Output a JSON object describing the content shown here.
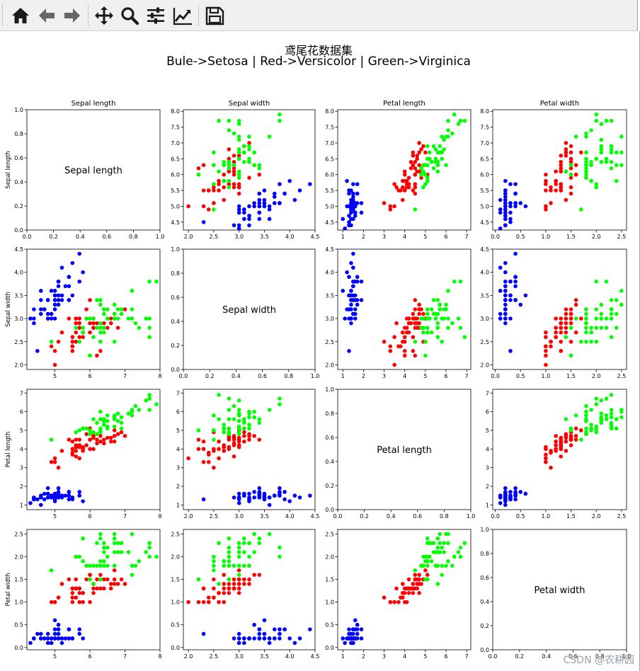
{
  "toolbar": {
    "buttons": [
      {
        "name": "home-button",
        "icon": "home-icon"
      },
      {
        "name": "back-button",
        "icon": "arrow-left-icon"
      },
      {
        "name": "forward-button",
        "icon": "arrow-right-icon"
      },
      {
        "name": "pan-button",
        "icon": "move-icon"
      },
      {
        "name": "zoom-button",
        "icon": "magnifier-icon"
      },
      {
        "name": "configure-subplots-button",
        "icon": "sliders-icon"
      },
      {
        "name": "edit-axis-button",
        "icon": "line-chart-icon"
      },
      {
        "name": "save-button",
        "icon": "save-icon"
      }
    ]
  },
  "figure": {
    "title_line1": "鸢尾花数据集",
    "title_line2": "Bule->Setosa | Red->Versicolor | Green->Virginica",
    "watermark": "CSDN @农耕园"
  },
  "chart_data": {
    "type": "scatter",
    "layout": "4x4 scatter matrix",
    "features": [
      "Sepal length",
      "Sepal width",
      "Petal length",
      "Petal width"
    ],
    "colors": {
      "Setosa": "#0000ff",
      "Versicolor": "#ff0000",
      "Virginica": "#00ff00"
    },
    "grid": false,
    "diagonal_axis": {
      "xlim": [
        0,
        1
      ],
      "ylim": [
        0,
        1
      ],
      "ticks": [
        "0.0",
        "0.2",
        "0.4",
        "0.6",
        "0.8",
        "1.0"
      ]
    },
    "axes": {
      "Sepal length": {
        "lim": [
          4.2,
          8.0
        ],
        "ticks": [
          5,
          6,
          7,
          8
        ]
      },
      "Sepal width": {
        "lim": [
          1.9,
          4.5
        ],
        "ticks": [
          2.0,
          2.5,
          3.0,
          3.5,
          4.0,
          4.5
        ]
      },
      "Petal length": {
        "lim": [
          0.75,
          7.2
        ],
        "ticks": [
          1,
          2,
          3,
          4,
          5,
          6,
          7
        ]
      },
      "Petal width": {
        "lim": [
          -0.05,
          2.6
        ],
        "ticks": [
          0.0,
          0.5,
          1.0,
          1.5,
          2.0,
          2.5
        ]
      }
    },
    "tick_labels": {
      "Sepal length": [
        "5",
        "6",
        "7",
        "8"
      ],
      "Sepal width": [
        "2.0",
        "2.5",
        "3.0",
        "3.5",
        "4.0",
        "4.5"
      ],
      "Petal length": [
        "1",
        "2",
        "3",
        "4",
        "5",
        "6",
        "7"
      ],
      "Petal width": [
        "0.0",
        "0.5",
        "1.0",
        "1.5",
        "2.0",
        "2.5"
      ]
    },
    "row_tick_labels": {
      "Sepal length": [
        "4.5",
        "5.0",
        "5.5",
        "6.0",
        "6.5",
        "7.0",
        "7.5",
        "8.0"
      ],
      "Sepal width": [
        "2.0",
        "2.5",
        "3.0",
        "3.5",
        "4.0",
        "4.5"
      ],
      "Petal length": [
        "1",
        "2",
        "3",
        "4",
        "5",
        "6",
        "7"
      ],
      "Petal width": [
        "0.0",
        "0.5",
        "1.0",
        "1.5",
        "2.0",
        "2.5"
      ]
    },
    "row_axes": {
      "Sepal length": {
        "lim": [
          4.25,
          8.05
        ],
        "ticks": [
          4.5,
          5.0,
          5.5,
          6.0,
          6.5,
          7.0,
          7.5,
          8.0
        ]
      }
    },
    "species_order": [
      "Setosa",
      "Versicolor",
      "Virginica"
    ],
    "samples_per_species": 50,
    "data": [
      [
        5.1,
        3.5,
        1.4,
        0.2
      ],
      [
        4.9,
        3.0,
        1.4,
        0.2
      ],
      [
        4.7,
        3.2,
        1.3,
        0.2
      ],
      [
        4.6,
        3.1,
        1.5,
        0.2
      ],
      [
        5.0,
        3.6,
        1.4,
        0.2
      ],
      [
        5.4,
        3.9,
        1.7,
        0.4
      ],
      [
        4.6,
        3.4,
        1.4,
        0.3
      ],
      [
        5.0,
        3.4,
        1.5,
        0.2
      ],
      [
        4.4,
        2.9,
        1.4,
        0.2
      ],
      [
        4.9,
        3.1,
        1.5,
        0.1
      ],
      [
        5.4,
        3.7,
        1.5,
        0.2
      ],
      [
        4.8,
        3.4,
        1.6,
        0.2
      ],
      [
        4.8,
        3.0,
        1.4,
        0.1
      ],
      [
        4.3,
        3.0,
        1.1,
        0.1
      ],
      [
        5.8,
        4.0,
        1.2,
        0.2
      ],
      [
        5.7,
        4.4,
        1.5,
        0.4
      ],
      [
        5.4,
        3.9,
        1.3,
        0.4
      ],
      [
        5.1,
        3.5,
        1.4,
        0.3
      ],
      [
        5.7,
        3.8,
        1.7,
        0.3
      ],
      [
        5.1,
        3.8,
        1.5,
        0.3
      ],
      [
        5.4,
        3.4,
        1.7,
        0.2
      ],
      [
        5.1,
        3.7,
        1.5,
        0.4
      ],
      [
        4.6,
        3.6,
        1.0,
        0.2
      ],
      [
        5.1,
        3.3,
        1.7,
        0.5
      ],
      [
        4.8,
        3.4,
        1.9,
        0.2
      ],
      [
        5.0,
        3.0,
        1.6,
        0.2
      ],
      [
        5.0,
        3.4,
        1.6,
        0.4
      ],
      [
        5.2,
        3.5,
        1.5,
        0.2
      ],
      [
        5.2,
        3.4,
        1.4,
        0.2
      ],
      [
        4.7,
        3.2,
        1.6,
        0.2
      ],
      [
        4.8,
        3.1,
        1.6,
        0.2
      ],
      [
        5.4,
        3.4,
        1.5,
        0.4
      ],
      [
        5.2,
        4.1,
        1.5,
        0.1
      ],
      [
        5.5,
        4.2,
        1.4,
        0.2
      ],
      [
        4.9,
        3.1,
        1.5,
        0.2
      ],
      [
        5.0,
        3.2,
        1.2,
        0.2
      ],
      [
        5.5,
        3.5,
        1.3,
        0.2
      ],
      [
        4.9,
        3.6,
        1.4,
        0.1
      ],
      [
        4.4,
        3.0,
        1.3,
        0.2
      ],
      [
        5.1,
        3.4,
        1.5,
        0.2
      ],
      [
        5.0,
        3.5,
        1.3,
        0.3
      ],
      [
        4.5,
        2.3,
        1.3,
        0.3
      ],
      [
        4.4,
        3.2,
        1.3,
        0.2
      ],
      [
        5.0,
        3.5,
        1.6,
        0.6
      ],
      [
        5.1,
        3.8,
        1.9,
        0.4
      ],
      [
        4.8,
        3.0,
        1.4,
        0.3
      ],
      [
        5.1,
        3.8,
        1.6,
        0.2
      ],
      [
        4.6,
        3.2,
        1.4,
        0.2
      ],
      [
        5.3,
        3.7,
        1.5,
        0.2
      ],
      [
        5.0,
        3.3,
        1.4,
        0.2
      ],
      [
        7.0,
        3.2,
        4.7,
        1.4
      ],
      [
        6.4,
        3.2,
        4.5,
        1.5
      ],
      [
        6.9,
        3.1,
        4.9,
        1.5
      ],
      [
        5.5,
        2.3,
        4.0,
        1.3
      ],
      [
        6.5,
        2.8,
        4.6,
        1.5
      ],
      [
        5.7,
        2.8,
        4.5,
        1.3
      ],
      [
        6.3,
        3.3,
        4.7,
        1.6
      ],
      [
        4.9,
        2.4,
        3.3,
        1.0
      ],
      [
        6.6,
        2.9,
        4.6,
        1.3
      ],
      [
        5.2,
        2.7,
        3.9,
        1.4
      ],
      [
        5.0,
        2.0,
        3.5,
        1.0
      ],
      [
        5.9,
        3.0,
        4.2,
        1.5
      ],
      [
        6.0,
        2.2,
        4.0,
        1.0
      ],
      [
        6.1,
        2.9,
        4.7,
        1.4
      ],
      [
        5.6,
        2.9,
        3.6,
        1.3
      ],
      [
        6.7,
        3.1,
        4.4,
        1.4
      ],
      [
        5.6,
        3.0,
        4.5,
        1.5
      ],
      [
        5.8,
        2.7,
        4.1,
        1.0
      ],
      [
        6.2,
        2.2,
        4.5,
        1.5
      ],
      [
        5.6,
        2.5,
        3.9,
        1.1
      ],
      [
        5.9,
        3.2,
        4.8,
        1.8
      ],
      [
        6.1,
        2.8,
        4.0,
        1.3
      ],
      [
        6.3,
        2.5,
        4.9,
        1.5
      ],
      [
        6.1,
        2.8,
        4.7,
        1.2
      ],
      [
        6.4,
        2.9,
        4.3,
        1.3
      ],
      [
        6.6,
        3.0,
        4.4,
        1.4
      ],
      [
        6.8,
        2.8,
        4.8,
        1.4
      ],
      [
        6.7,
        3.0,
        5.0,
        1.7
      ],
      [
        6.0,
        2.9,
        4.5,
        1.5
      ],
      [
        5.7,
        2.6,
        3.5,
        1.0
      ],
      [
        5.5,
        2.4,
        3.8,
        1.1
      ],
      [
        5.5,
        2.4,
        3.7,
        1.0
      ],
      [
        5.8,
        2.7,
        3.9,
        1.2
      ],
      [
        6.0,
        2.7,
        5.1,
        1.6
      ],
      [
        5.4,
        3.0,
        4.5,
        1.5
      ],
      [
        6.0,
        3.4,
        4.5,
        1.6
      ],
      [
        6.7,
        3.1,
        4.7,
        1.5
      ],
      [
        6.3,
        2.3,
        4.4,
        1.3
      ],
      [
        5.6,
        3.0,
        4.1,
        1.3
      ],
      [
        5.5,
        2.5,
        4.0,
        1.3
      ],
      [
        5.5,
        2.6,
        4.4,
        1.2
      ],
      [
        6.1,
        3.0,
        4.6,
        1.4
      ],
      [
        5.8,
        2.6,
        4.0,
        1.2
      ],
      [
        5.0,
        2.3,
        3.3,
        1.0
      ],
      [
        5.6,
        2.7,
        4.2,
        1.3
      ],
      [
        5.7,
        3.0,
        4.2,
        1.2
      ],
      [
        5.7,
        2.9,
        4.2,
        1.3
      ],
      [
        6.2,
        2.9,
        4.3,
        1.3
      ],
      [
        5.1,
        2.5,
        3.0,
        1.1
      ],
      [
        5.7,
        2.8,
        4.1,
        1.3
      ],
      [
        6.3,
        3.3,
        6.0,
        2.5
      ],
      [
        5.8,
        2.7,
        5.1,
        1.9
      ],
      [
        7.1,
        3.0,
        5.9,
        2.1
      ],
      [
        6.3,
        2.9,
        5.6,
        1.8
      ],
      [
        6.5,
        3.0,
        5.8,
        2.2
      ],
      [
        7.6,
        3.0,
        6.6,
        2.1
      ],
      [
        4.9,
        2.5,
        4.5,
        1.7
      ],
      [
        7.3,
        2.9,
        6.3,
        1.8
      ],
      [
        6.7,
        2.5,
        5.8,
        1.8
      ],
      [
        7.2,
        3.6,
        6.1,
        2.5
      ],
      [
        6.5,
        3.2,
        5.1,
        2.0
      ],
      [
        6.4,
        2.7,
        5.3,
        1.9
      ],
      [
        6.8,
        3.0,
        5.5,
        2.1
      ],
      [
        5.7,
        2.5,
        5.0,
        2.0
      ],
      [
        5.8,
        2.8,
        5.1,
        2.4
      ],
      [
        6.4,
        3.2,
        5.3,
        2.3
      ],
      [
        6.5,
        3.0,
        5.5,
        1.8
      ],
      [
        7.7,
        3.8,
        6.7,
        2.2
      ],
      [
        7.7,
        2.6,
        6.9,
        2.3
      ],
      [
        6.0,
        2.2,
        5.0,
        1.5
      ],
      [
        6.9,
        3.2,
        5.7,
        2.3
      ],
      [
        5.6,
        2.8,
        4.9,
        2.0
      ],
      [
        7.7,
        2.8,
        6.7,
        2.0
      ],
      [
        6.3,
        2.7,
        4.9,
        1.8
      ],
      [
        6.7,
        3.3,
        5.7,
        2.1
      ],
      [
        7.2,
        3.2,
        6.0,
        1.8
      ],
      [
        6.2,
        2.8,
        4.8,
        1.8
      ],
      [
        6.1,
        3.0,
        4.9,
        1.8
      ],
      [
        6.4,
        2.8,
        5.6,
        2.1
      ],
      [
        7.2,
        3.0,
        5.8,
        1.6
      ],
      [
        7.4,
        2.8,
        6.1,
        1.9
      ],
      [
        7.9,
        3.8,
        6.4,
        2.0
      ],
      [
        6.4,
        2.8,
        5.6,
        2.2
      ],
      [
        6.3,
        2.8,
        5.1,
        1.5
      ],
      [
        6.1,
        2.6,
        5.6,
        1.4
      ],
      [
        7.7,
        3.0,
        6.1,
        2.3
      ],
      [
        6.3,
        3.4,
        5.6,
        2.4
      ],
      [
        6.4,
        3.1,
        5.5,
        1.8
      ],
      [
        6.0,
        3.0,
        4.8,
        1.8
      ],
      [
        6.9,
        3.1,
        5.4,
        2.1
      ],
      [
        6.7,
        3.1,
        5.6,
        2.4
      ],
      [
        6.9,
        3.1,
        5.1,
        2.3
      ],
      [
        5.8,
        2.7,
        5.1,
        1.9
      ],
      [
        6.8,
        3.2,
        5.9,
        2.3
      ],
      [
        6.7,
        3.3,
        5.7,
        2.5
      ],
      [
        6.7,
        3.0,
        5.2,
        2.3
      ],
      [
        6.3,
        2.5,
        5.0,
        1.9
      ],
      [
        6.5,
        3.0,
        5.2,
        2.0
      ],
      [
        6.2,
        3.4,
        5.4,
        2.3
      ],
      [
        5.9,
        3.0,
        5.1,
        1.8
      ]
    ]
  }
}
